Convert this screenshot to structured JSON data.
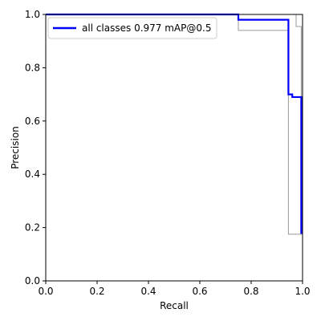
{
  "chart_data": {
    "type": "line",
    "title": "",
    "xlabel": "Recall",
    "ylabel": "Precision",
    "xlim": [
      0.0,
      1.0
    ],
    "ylim": [
      0.0,
      1.0
    ],
    "grid": false,
    "legend_position": "top-left",
    "x_ticks": [
      "0.0",
      "0.2",
      "0.4",
      "0.6",
      "0.8",
      "1.0"
    ],
    "y_ticks": [
      "0.0",
      "0.2",
      "0.4",
      "0.6",
      "0.8",
      "1.0"
    ],
    "series": [
      {
        "name": "all classes 0.977 mAP@0.5",
        "color": "#0000ff",
        "points": [
          [
            0.0,
            1.0
          ],
          [
            0.75,
            1.0
          ],
          [
            0.75,
            0.98
          ],
          [
            0.945,
            0.98
          ],
          [
            0.945,
            0.7
          ],
          [
            0.96,
            0.7
          ],
          [
            0.96,
            0.69
          ],
          [
            0.995,
            0.69
          ],
          [
            0.995,
            0.18
          ],
          [
            1.0,
            0.18
          ]
        ]
      },
      {
        "name": "",
        "color": "#999999",
        "points": [
          [
            0.0,
            1.0
          ],
          [
            0.975,
            1.0
          ],
          [
            0.975,
            0.955
          ],
          [
            0.995,
            0.955
          ],
          [
            0.995,
            0.18
          ],
          [
            1.0,
            0.18
          ]
        ]
      },
      {
        "name": "",
        "color": "#999999",
        "points": [
          [
            0.0,
            1.0
          ],
          [
            0.75,
            1.0
          ],
          [
            0.75,
            0.94
          ],
          [
            0.945,
            0.94
          ],
          [
            0.945,
            0.175
          ],
          [
            1.0,
            0.175
          ]
        ]
      }
    ]
  }
}
